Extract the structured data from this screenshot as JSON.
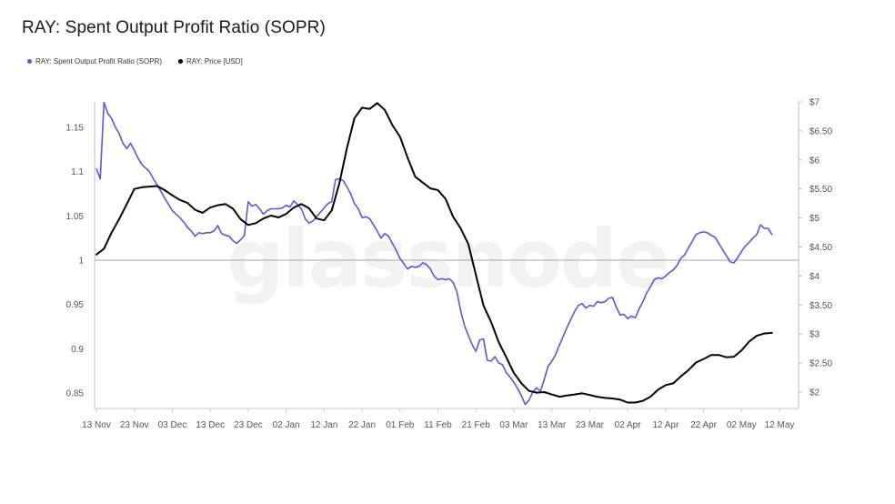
{
  "title": "RAY: Spent Output Profit Ratio (SOPR)",
  "legend": [
    {
      "label": "RAY: Spent Output Profit Ratio (SOPR)",
      "color": "#6b4fd8"
    },
    {
      "label": "RAY: Price [USD]",
      "color": "#000000"
    }
  ],
  "watermark": "glassnode",
  "chart_data": {
    "type": "line",
    "x_tick_labels": [
      "13 Nov",
      "23 Nov",
      "03 Dec",
      "13 Dec",
      "23 Dec",
      "02 Jan",
      "12 Jan",
      "22 Jan",
      "01 Feb",
      "11 Feb",
      "21 Feb",
      "03 Mar",
      "13 Mar",
      "23 Mar",
      "02 Apr",
      "12 Apr",
      "22 Apr",
      "02 May",
      "12 May"
    ],
    "x_tick_day_index": [
      0,
      10,
      20,
      30,
      40,
      50,
      60,
      70,
      80,
      90,
      100,
      110,
      120,
      130,
      140,
      150,
      160,
      170,
      180
    ],
    "x_range_days": [
      0,
      190
    ],
    "y_left": {
      "ticks": [
        0.85,
        0.9,
        0.95,
        1,
        1.05,
        1.1,
        1.15
      ],
      "tick_labels": [
        "0.85",
        "0.9",
        "0.95",
        "1",
        "1.05",
        "1.1",
        "1.15"
      ],
      "range": [
        0.833,
        1.178
      ],
      "reference_line": 1
    },
    "y_right": {
      "ticks": [
        2,
        2.5,
        3,
        3.5,
        4,
        4.5,
        5,
        5.5,
        6,
        6.5,
        7
      ],
      "tick_labels": [
        "$2",
        "$2.50",
        "$3",
        "$3.50",
        "$4",
        "$4.50",
        "$5",
        "$5.50",
        "$6",
        "$6.50",
        "$7"
      ],
      "range": [
        1.8,
        7.05
      ]
    },
    "grid": false,
    "legend_position": "top-left",
    "series": [
      {
        "name": "RAY: Spent Output Profit Ratio (SOPR)",
        "color": "#6b4fd8",
        "axis": "left",
        "points": [
          [
            0,
            1.103
          ],
          [
            1,
            1.092
          ],
          [
            2,
            1.178
          ],
          [
            3,
            1.166
          ],
          [
            4,
            1.16
          ],
          [
            5,
            1.15
          ],
          [
            6,
            1.143
          ],
          [
            7,
            1.132
          ],
          [
            8,
            1.126
          ],
          [
            9,
            1.132
          ],
          [
            10,
            1.124
          ],
          [
            11,
            1.115
          ],
          [
            12,
            1.108
          ],
          [
            13,
            1.104
          ],
          [
            14,
            1.1
          ],
          [
            15,
            1.092
          ],
          [
            16,
            1.085
          ],
          [
            17,
            1.078
          ],
          [
            18,
            1.07
          ],
          [
            19,
            1.063
          ],
          [
            20,
            1.056
          ],
          [
            21,
            1.052
          ],
          [
            22,
            1.048
          ],
          [
            23,
            1.043
          ],
          [
            24,
            1.037
          ],
          [
            25,
            1.033
          ],
          [
            26,
            1.027
          ],
          [
            27,
            1.031
          ],
          [
            28,
            1.03
          ],
          [
            29,
            1.031
          ],
          [
            30,
            1.031
          ],
          [
            31,
            1.033
          ],
          [
            32,
            1.039
          ],
          [
            33,
            1.03
          ],
          [
            34,
            1.028
          ],
          [
            35,
            1.027
          ],
          [
            36,
            1.022
          ],
          [
            37,
            1.019
          ],
          [
            38,
            1.023
          ],
          [
            39,
            1.028
          ],
          [
            40,
            1.066
          ],
          [
            41,
            1.061
          ],
          [
            42,
            1.063
          ],
          [
            43,
            1.058
          ],
          [
            44,
            1.052
          ],
          [
            45,
            1.056
          ],
          [
            46,
            1.058
          ],
          [
            47,
            1.058
          ],
          [
            48,
            1.058
          ],
          [
            49,
            1.059
          ],
          [
            50,
            1.062
          ],
          [
            51,
            1.06
          ],
          [
            52,
            1.067
          ],
          [
            53,
            1.063
          ],
          [
            54,
            1.058
          ],
          [
            55,
            1.047
          ],
          [
            56,
            1.042
          ],
          [
            57,
            1.044
          ],
          [
            58,
            1.049
          ],
          [
            59,
            1.054
          ],
          [
            60,
            1.059
          ],
          [
            61,
            1.064
          ],
          [
            62,
            1.066
          ],
          [
            63,
            1.091
          ],
          [
            64,
            1.092
          ],
          [
            65,
            1.09
          ],
          [
            66,
            1.083
          ],
          [
            67,
            1.075
          ],
          [
            68,
            1.064
          ],
          [
            69,
            1.058
          ],
          [
            70,
            1.048
          ],
          [
            71,
            1.049
          ],
          [
            72,
            1.047
          ],
          [
            73,
            1.04
          ],
          [
            74,
            1.033
          ],
          [
            75,
            1.025
          ],
          [
            76,
            1.03
          ],
          [
            77,
            1.027
          ],
          [
            78,
            1.019
          ],
          [
            79,
            1.011
          ],
          [
            80,
            1.002
          ],
          [
            81,
            0.996
          ],
          [
            82,
            0.99
          ],
          [
            83,
            0.993
          ],
          [
            84,
            0.992
          ],
          [
            85,
            0.993
          ],
          [
            86,
            0.997
          ],
          [
            87,
            0.995
          ],
          [
            88,
            0.99
          ],
          [
            89,
            0.982
          ],
          [
            90,
            0.978
          ],
          [
            91,
            0.979
          ],
          [
            92,
            0.978
          ],
          [
            93,
            0.979
          ],
          [
            94,
            0.975
          ],
          [
            95,
            0.964
          ],
          [
            96,
            0.943
          ],
          [
            97,
            0.926
          ],
          [
            98,
            0.915
          ],
          [
            99,
            0.905
          ],
          [
            100,
            0.897
          ],
          [
            101,
            0.91
          ],
          [
            102,
            0.911
          ],
          [
            103,
            0.887
          ],
          [
            104,
            0.886
          ],
          [
            105,
            0.891
          ],
          [
            106,
            0.884
          ],
          [
            107,
            0.882
          ],
          [
            108,
            0.873
          ],
          [
            109,
            0.868
          ],
          [
            110,
            0.862
          ],
          [
            111,
            0.855
          ],
          [
            112,
            0.847
          ],
          [
            113,
            0.837
          ],
          [
            114,
            0.842
          ],
          [
            115,
            0.851
          ],
          [
            116,
            0.856
          ],
          [
            117,
            0.852
          ],
          [
            118,
            0.865
          ],
          [
            119,
            0.88
          ],
          [
            120,
            0.886
          ],
          [
            121,
            0.893
          ],
          [
            122,
            0.904
          ],
          [
            123,
            0.914
          ],
          [
            124,
            0.924
          ],
          [
            125,
            0.933
          ],
          [
            126,
            0.942
          ],
          [
            127,
            0.949
          ],
          [
            128,
            0.951
          ],
          [
            129,
            0.946
          ],
          [
            130,
            0.949
          ],
          [
            131,
            0.948
          ],
          [
            132,
            0.953
          ],
          [
            133,
            0.952
          ],
          [
            134,
            0.953
          ],
          [
            135,
            0.957
          ],
          [
            136,
            0.958
          ],
          [
            137,
            0.947
          ],
          [
            138,
            0.938
          ],
          [
            139,
            0.939
          ],
          [
            140,
            0.934
          ],
          [
            141,
            0.937
          ],
          [
            142,
            0.935
          ],
          [
            143,
            0.945
          ],
          [
            144,
            0.953
          ],
          [
            145,
            0.963
          ],
          [
            146,
            0.97
          ],
          [
            147,
            0.978
          ],
          [
            148,
            0.98
          ],
          [
            149,
            0.979
          ],
          [
            150,
            0.982
          ],
          [
            151,
            0.986
          ],
          [
            152,
            0.989
          ],
          [
            153,
            0.994
          ],
          [
            154,
            1.002
          ],
          [
            155,
            1.006
          ],
          [
            156,
            1.014
          ],
          [
            157,
            1.021
          ],
          [
            158,
            1.029
          ],
          [
            159,
            1.031
          ],
          [
            160,
            1.032
          ],
          [
            161,
            1.031
          ],
          [
            162,
            1.028
          ],
          [
            163,
            1.026
          ],
          [
            164,
            1.019
          ],
          [
            165,
            1.012
          ],
          [
            166,
            1.005
          ],
          [
            167,
            0.998
          ],
          [
            168,
            0.997
          ],
          [
            169,
            1.003
          ],
          [
            170,
            1.01
          ],
          [
            171,
            1.016
          ],
          [
            172,
            1.02
          ],
          [
            173,
            1.025
          ],
          [
            174,
            1.029
          ],
          [
            175,
            1.04
          ],
          [
            176,
            1.036
          ],
          [
            177,
            1.036
          ],
          [
            178,
            1.029
          ]
        ]
      },
      {
        "name": "RAY: Price [USD]",
        "color": "#000000",
        "axis": "right",
        "points": [
          [
            0,
            4.37
          ],
          [
            2,
            4.47
          ],
          [
            4,
            4.75
          ],
          [
            6,
            4.98
          ],
          [
            8,
            5.24
          ],
          [
            10,
            5.5
          ],
          [
            12,
            5.53
          ],
          [
            14,
            5.54
          ],
          [
            16,
            5.55
          ],
          [
            18,
            5.48
          ],
          [
            20,
            5.39
          ],
          [
            22,
            5.31
          ],
          [
            24,
            5.26
          ],
          [
            26,
            5.14
          ],
          [
            28,
            5.09
          ],
          [
            30,
            5.18
          ],
          [
            32,
            5.22
          ],
          [
            34,
            5.24
          ],
          [
            36,
            5.16
          ],
          [
            38,
            4.98
          ],
          [
            40,
            4.88
          ],
          [
            42,
            4.91
          ],
          [
            44,
            4.99
          ],
          [
            46,
            5.04
          ],
          [
            48,
            5.01
          ],
          [
            50,
            5.07
          ],
          [
            52,
            5.18
          ],
          [
            54,
            5.24
          ],
          [
            56,
            5.17
          ],
          [
            58,
            4.99
          ],
          [
            60,
            4.96
          ],
          [
            62,
            5.13
          ],
          [
            64,
            5.59
          ],
          [
            66,
            6.2
          ],
          [
            68,
            6.72
          ],
          [
            70,
            6.9
          ],
          [
            72,
            6.88
          ],
          [
            74,
            6.98
          ],
          [
            76,
            6.86
          ],
          [
            78,
            6.6
          ],
          [
            80,
            6.4
          ],
          [
            82,
            6.04
          ],
          [
            84,
            5.71
          ],
          [
            86,
            5.61
          ],
          [
            88,
            5.51
          ],
          [
            90,
            5.48
          ],
          [
            92,
            5.33
          ],
          [
            94,
            5.02
          ],
          [
            96,
            4.82
          ],
          [
            98,
            4.55
          ],
          [
            100,
            4.02
          ],
          [
            102,
            3.49
          ],
          [
            104,
            3.21
          ],
          [
            106,
            2.86
          ],
          [
            108,
            2.6
          ],
          [
            110,
            2.33
          ],
          [
            112,
            2.15
          ],
          [
            114,
            2.02
          ],
          [
            116,
            1.99
          ],
          [
            118,
            2.0
          ],
          [
            120,
            1.96
          ],
          [
            122,
            1.92
          ],
          [
            124,
            1.94
          ],
          [
            126,
            1.96
          ],
          [
            128,
            1.98
          ],
          [
            130,
            1.95
          ],
          [
            132,
            1.92
          ],
          [
            134,
            1.9
          ],
          [
            136,
            1.89
          ],
          [
            138,
            1.87
          ],
          [
            140,
            1.82
          ],
          [
            142,
            1.82
          ],
          [
            144,
            1.85
          ],
          [
            146,
            1.92
          ],
          [
            148,
            2.04
          ],
          [
            150,
            2.12
          ],
          [
            152,
            2.15
          ],
          [
            154,
            2.27
          ],
          [
            156,
            2.38
          ],
          [
            158,
            2.51
          ],
          [
            160,
            2.57
          ],
          [
            162,
            2.64
          ],
          [
            164,
            2.64
          ],
          [
            166,
            2.6
          ],
          [
            168,
            2.61
          ],
          [
            170,
            2.72
          ],
          [
            172,
            2.87
          ],
          [
            174,
            2.97
          ],
          [
            176,
            3.01
          ],
          [
            178,
            3.02
          ]
        ]
      }
    ]
  }
}
